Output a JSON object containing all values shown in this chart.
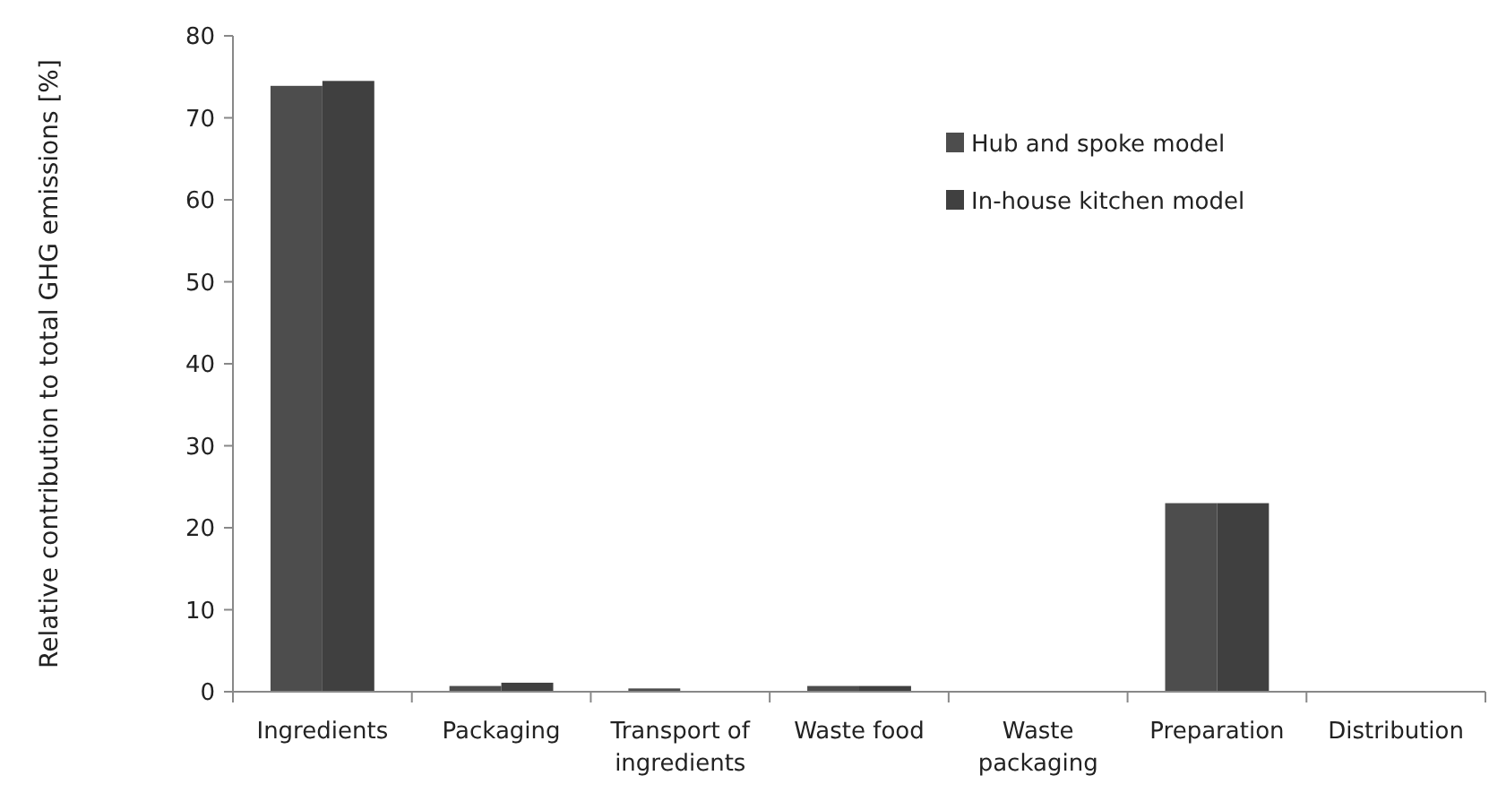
{
  "chart_data": {
    "type": "bar",
    "ylabel": "Relative contribution to total GHG emissions  [%]",
    "categories": [
      "Ingredients",
      "Packaging",
      "Transport of ingredients",
      "Waste food",
      "Waste packaging",
      "Preparation",
      "Distribution"
    ],
    "series": [
      {
        "name": "Hub and spoke model",
        "color": "#4d4d4d",
        "values": [
          73.9,
          0.7,
          0.4,
          0.7,
          0,
          23,
          0
        ]
      },
      {
        "name": "In-house kitchen model",
        "color": "#404040",
        "values": [
          74.5,
          1.1,
          0,
          0.7,
          0,
          23,
          0
        ]
      }
    ],
    "ylim": [
      0,
      80
    ],
    "yticks": [
      0,
      10,
      20,
      30,
      40,
      50,
      60,
      70,
      80
    ],
    "grid": false,
    "legend": "top right"
  }
}
